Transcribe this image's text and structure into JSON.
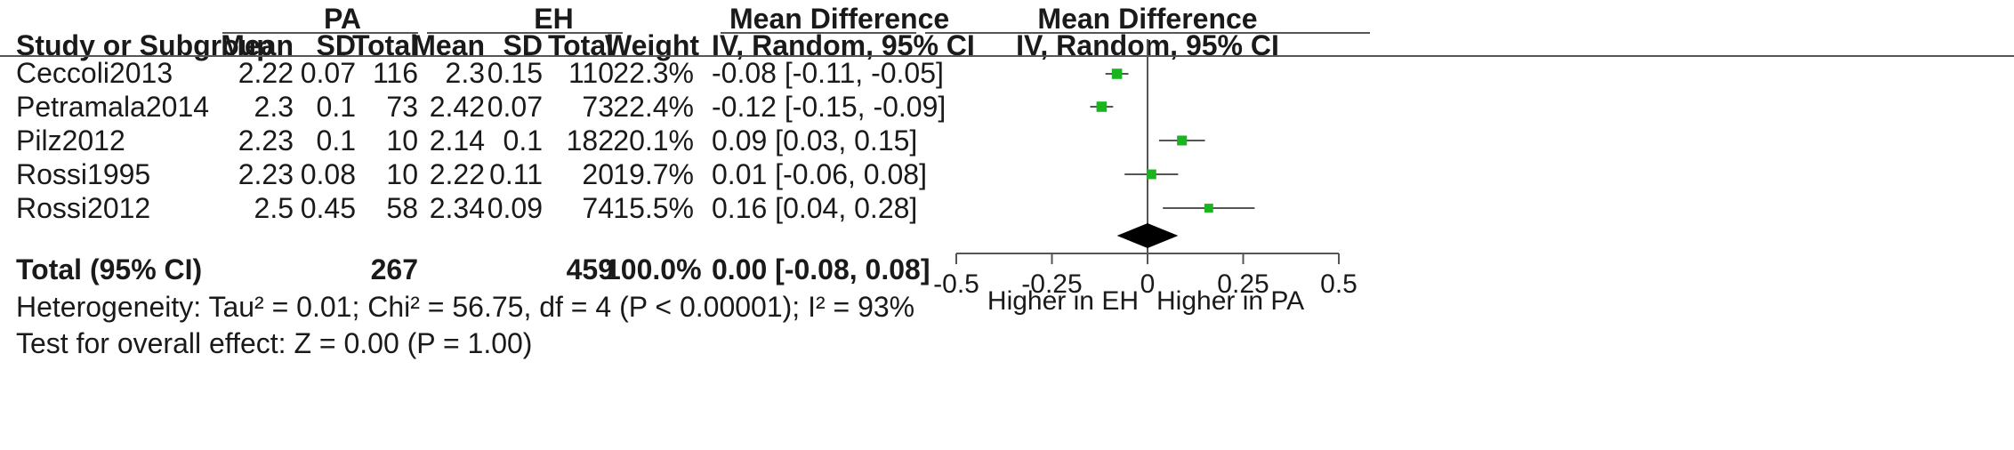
{
  "headers": {
    "group1": "PA",
    "group2": "EH",
    "md_table_title": "Mean Difference",
    "md_table_sub": "IV, Random, 95% CI",
    "md_plot_title": "Mean Difference",
    "md_plot_sub": "IV, Random, 95% CI",
    "study": "Study or Subgroup",
    "mean1": "Mean",
    "sd1": "SD",
    "total1": "Total",
    "mean2": "Mean",
    "sd2": "SD",
    "total2": "Total",
    "weight": "Weight"
  },
  "rows": [
    {
      "study": "Ceccoli2013",
      "m1": "2.22",
      "sd1": "0.07",
      "n1": "116",
      "m2": "2.3",
      "sd2": "0.15",
      "n2": "110",
      "weight": "22.3%",
      "ci": "-0.08 [-0.11, -0.05]"
    },
    {
      "study": "Petramala2014",
      "m1": "2.3",
      "sd1": "0.1",
      "n1": "73",
      "m2": "2.42",
      "sd2": "0.07",
      "n2": "73",
      "weight": "22.4%",
      "ci": "-0.12 [-0.15, -0.09]"
    },
    {
      "study": "Pilz2012",
      "m1": "2.23",
      "sd1": "0.1",
      "n1": "10",
      "m2": "2.14",
      "sd2": "0.1",
      "n2": "182",
      "weight": "20.1%",
      "ci": "0.09 [0.03, 0.15]"
    },
    {
      "study": "Rossi1995",
      "m1": "2.23",
      "sd1": "0.08",
      "n1": "10",
      "m2": "2.22",
      "sd2": "0.11",
      "n2": "20",
      "weight": "19.7%",
      "ci": "0.01 [-0.06, 0.08]"
    },
    {
      "study": "Rossi2012",
      "m1": "2.5",
      "sd1": "0.45",
      "n1": "58",
      "m2": "2.34",
      "sd2": "0.09",
      "n2": "74",
      "weight": "15.5%",
      "ci": "0.16 [0.04, 0.28]"
    }
  ],
  "total": {
    "label": "Total (95% CI)",
    "n1": "267",
    "n2": "459",
    "weight": "100.0%",
    "ci": "0.00 [-0.08, 0.08]"
  },
  "heterogeneity": "Heterogeneity: Tau² = 0.01; Chi² = 56.75, df = 4 (P < 0.00001); I² = 93%",
  "overall_effect": "Test for overall effect: Z = 0.00 (P = 1.00)",
  "colors": {
    "point": "#19b51f",
    "line": "#555555",
    "diamond": "#000000"
  },
  "chart_data": {
    "type": "forest",
    "studies": [
      {
        "name": "Ceccoli2013",
        "md": -0.08,
        "lo": -0.11,
        "hi": -0.05,
        "weight": 22.3
      },
      {
        "name": "Petramala2014",
        "md": -0.12,
        "lo": -0.15,
        "hi": -0.09,
        "weight": 22.4
      },
      {
        "name": "Pilz2012",
        "md": 0.09,
        "lo": 0.03,
        "hi": 0.15,
        "weight": 20.1
      },
      {
        "name": "Rossi1995",
        "md": 0.01,
        "lo": -0.06,
        "hi": 0.08,
        "weight": 19.7
      },
      {
        "name": "Rossi2012",
        "md": 0.16,
        "lo": 0.04,
        "hi": 0.28,
        "weight": 15.5
      }
    ],
    "pooled": {
      "md": 0.0,
      "lo": -0.08,
      "hi": 0.08
    },
    "xlim": [
      -0.5,
      0.5
    ],
    "ticks": [
      -0.5,
      -0.25,
      0,
      0.25,
      0.5
    ],
    "tick_labels": [
      "-0.5",
      "-0.25",
      "0",
      "0.25",
      "0.5"
    ],
    "xlabel_left": "Higher in EH",
    "xlabel_right": "Higher in PA"
  }
}
